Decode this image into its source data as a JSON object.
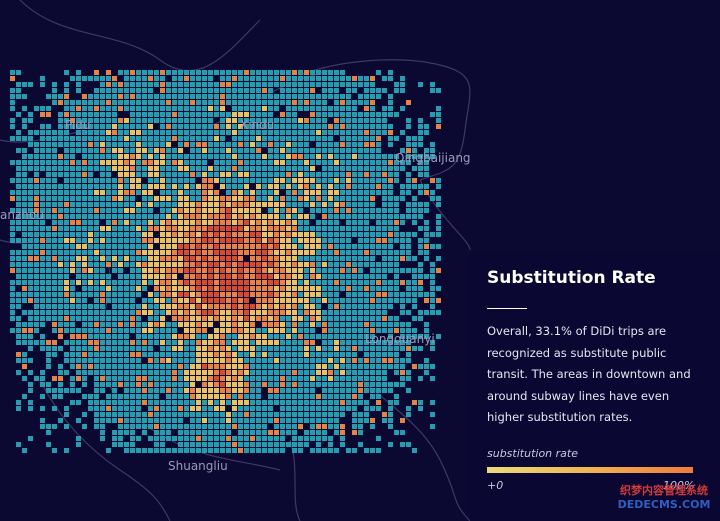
{
  "map": {
    "places": [
      {
        "id": "pidu",
        "label": "Pidu"
      },
      {
        "id": "xindu",
        "label": "Xindu"
      },
      {
        "id": "qingbaijiang",
        "label": "Qingbaijiang"
      },
      {
        "id": "wenjiang",
        "label": "anzhou"
      },
      {
        "id": "longquanyi",
        "label": "Longquanyi"
      },
      {
        "id": "shuangliu",
        "label": "Shuangliu"
      }
    ],
    "colors": {
      "background": "#0b0832",
      "low": "#1f9fb0",
      "mid": "#e9c25a",
      "high": "#e8823c",
      "peak": "#d84a2a"
    }
  },
  "panel": {
    "title": "Substitution Rate",
    "description": "Overall, 33.1% of DiDi trips are recognized as substitute public transit. The areas in downtown and around subway lines have even higher substitution rates."
  },
  "legend": {
    "title": "substitution rate",
    "min_label": "+0",
    "max_label": "100%",
    "colors": [
      "#e9dc7a",
      "#f0b44f",
      "#f07a3c"
    ]
  },
  "watermark": {
    "line1": "织梦内容管理系统",
    "line2": "DEDECMS.COM"
  }
}
